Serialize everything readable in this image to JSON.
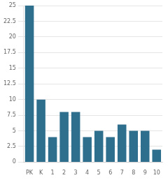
{
  "chart_data": {
    "type": "bar",
    "categories": [
      "PK",
      "K",
      "1",
      "2",
      "3",
      "4",
      "5",
      "6",
      "7",
      "8",
      "9",
      "10"
    ],
    "values": [
      25,
      10,
      4,
      8,
      8,
      4,
      5,
      4,
      6,
      5,
      5,
      2
    ],
    "color": "#2e6f8e",
    "ylim": [
      0,
      25
    ],
    "yticks": [
      0,
      2.5,
      5,
      7.5,
      10,
      12.5,
      15,
      17.5,
      20,
      22.5,
      25
    ],
    "grid": true
  }
}
